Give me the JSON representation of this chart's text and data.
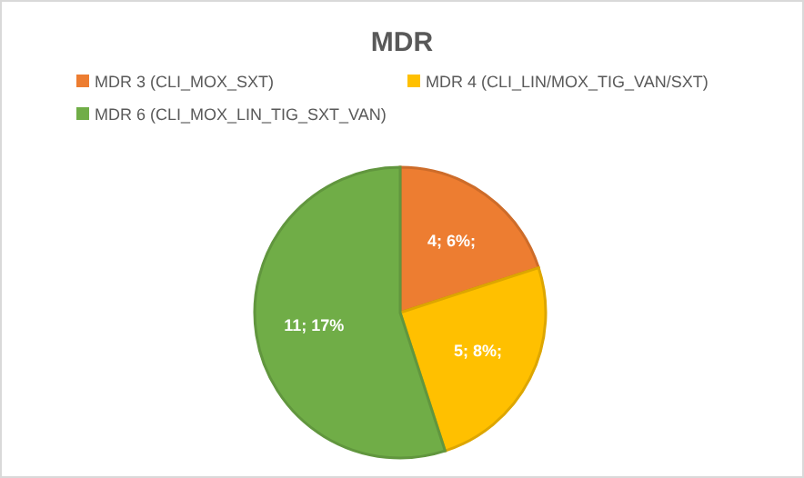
{
  "chart_data": {
    "type": "pie",
    "title": "MDR",
    "categories": [
      "MDR 3 (CLI_MOX_SXT)",
      "MDR 4 (CLI_LIN/MOX_TIG_VAN/SXT)",
      "MDR 6 (CLI_MOX_LIN_TIG_SXT_VAN)"
    ],
    "values": [
      4,
      5,
      11
    ],
    "colors": [
      "#ed7d31",
      "#ffc000",
      "#70ad47"
    ],
    "value_labels": [
      "4; 6%;",
      "5; 8%;",
      "11; 17%"
    ],
    "legend": "top"
  }
}
